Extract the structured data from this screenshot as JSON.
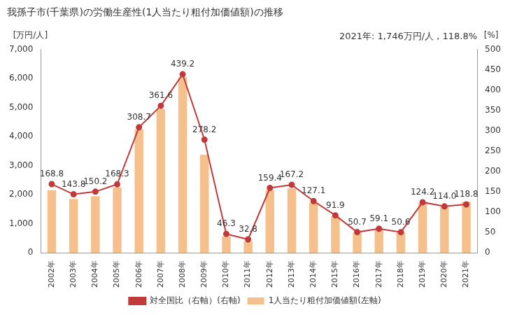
{
  "chart_data": {
    "type": "bar",
    "title": "我孫子市(千葉県)の労働生産性(1人当たり粗付加価値額)の推移",
    "y_label": "[万円/人]",
    "y2_label": "[%]",
    "annotation": "2021年: 1,746万円/人 , 118.8%",
    "categories": [
      "2002年",
      "2003年",
      "2004年",
      "2005年",
      "2006年",
      "2007年",
      "2008年",
      "2009年",
      "2010年",
      "2011年",
      "2012年",
      "2013年",
      "2014年",
      "2015年",
      "2016年",
      "2017年",
      "2018年",
      "2019年",
      "2020年",
      "2021年"
    ],
    "series": [
      {
        "name": "1人当たり粗付加価値額(左軸)",
        "type": "bar",
        "color": "#f6c08c",
        "values": [
          2150,
          1850,
          1950,
          2250,
          4250,
          4950,
          6050,
          3380,
          560,
          400,
          2150,
          2220,
          1720,
          1250,
          690,
          810,
          700,
          1700,
          1570,
          1746
        ]
      },
      {
        "name": "対全国比（右軸）(右軸)",
        "type": "line",
        "axis": "y2",
        "color": "#c0393b",
        "marker": "circle",
        "data_labels": true,
        "values": [
          168.8,
          143.8,
          150.2,
          168.3,
          308.7,
          361.6,
          439.2,
          278.2,
          46.3,
          32.8,
          159.4,
          167.2,
          127.1,
          91.9,
          50.7,
          59.1,
          50.6,
          124.2,
          114.0,
          118.8
        ],
        "value_labels": [
          "168.8",
          "143.8",
          "150.2",
          "168.3",
          "308.7",
          "361.6",
          "439.2",
          "278.2",
          "46.3",
          "32.8",
          "159.4",
          "167.2",
          "127.1",
          "91.9",
          "50.7",
          "59.1",
          "50.6",
          "124.2",
          "114.0",
          "118.8"
        ]
      }
    ],
    "ylim": [
      0,
      7000
    ],
    "yticks": [
      0,
      {
        "value": 1000,
        "label": "1,000"
      },
      {
        "value": 2000,
        "label": "2,000"
      },
      {
        "value": 3000,
        "label": "3,000"
      },
      {
        "value": 4000,
        "label": "4,000"
      },
      {
        "value": 5000,
        "label": "5,000"
      },
      {
        "value": 6000,
        "label": "6,000"
      },
      {
        "value": 7000,
        "label": "7,000"
      }
    ],
    "y2lim": [
      0,
      500
    ],
    "y2ticks": [
      0,
      50,
      100,
      150,
      200,
      250,
      300,
      350,
      400,
      450,
      500
    ],
    "grid": false,
    "legend": "bottom"
  }
}
